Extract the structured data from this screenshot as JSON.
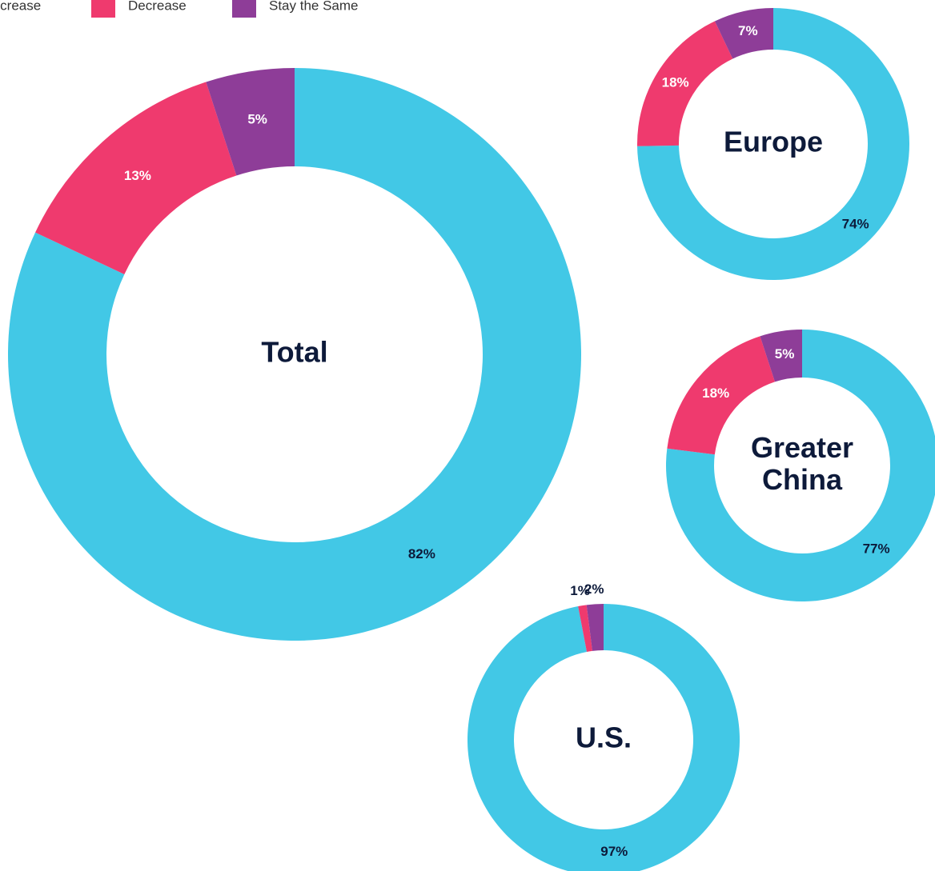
{
  "chart_data": [
    {
      "type": "pie",
      "title": "Total",
      "categories": [
        "Increase",
        "Decrease",
        "Stay the Same"
      ],
      "colors": [
        "#42c8e6",
        "#ef3a6e",
        "#8e3d98"
      ],
      "values": [
        82,
        13,
        5
      ],
      "value_labels": [
        "82%",
        "13%",
        "5%"
      ]
    },
    {
      "type": "pie",
      "title": "Europe",
      "categories": [
        "Increase",
        "Decrease",
        "Stay the Same"
      ],
      "colors": [
        "#42c8e6",
        "#ef3a6e",
        "#8e3d98"
      ],
      "values": [
        74,
        18,
        7
      ],
      "value_labels": [
        "74%",
        "18%",
        "7%"
      ]
    },
    {
      "type": "pie",
      "title": "Greater China",
      "categories": [
        "Increase",
        "Decrease",
        "Stay the Same"
      ],
      "colors": [
        "#42c8e6",
        "#ef3a6e",
        "#8e3d98"
      ],
      "values": [
        77,
        18,
        5
      ],
      "value_labels": [
        "77%",
        "18%",
        "5%"
      ]
    },
    {
      "type": "pie",
      "title": "U.S.",
      "categories": [
        "Increase",
        "Decrease",
        "Stay the Same"
      ],
      "colors": [
        "#42c8e6",
        "#ef3a6e",
        "#8e3d98"
      ],
      "values": [
        97,
        1,
        2
      ],
      "value_labels": [
        "97%",
        "1%",
        "2%"
      ]
    }
  ]
}
